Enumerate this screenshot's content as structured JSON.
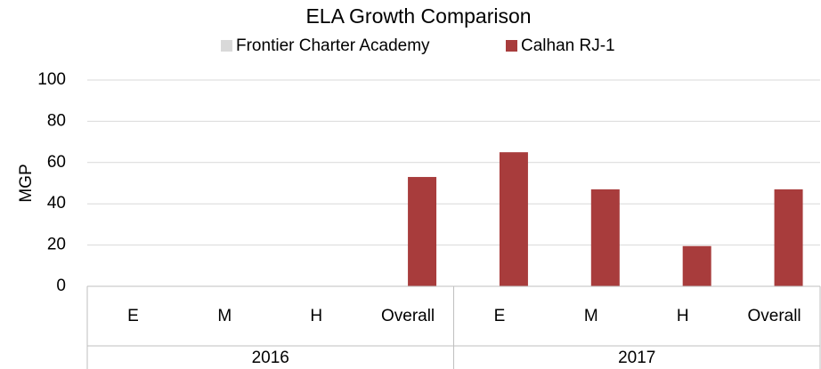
{
  "chart_data": {
    "type": "bar",
    "title": "ELA Growth Comparison",
    "y_label": "MGP",
    "categories": [
      "E",
      "M",
      "H",
      "Overall",
      "E",
      "M",
      "H",
      "Overall"
    ],
    "group_labels": [
      "2016",
      "2017"
    ],
    "series": [
      {
        "name": "Frontier Charter Academy",
        "color": "#d9d9d9",
        "values": [
          null,
          null,
          null,
          null,
          null,
          null,
          null,
          null
        ]
      },
      {
        "name": "Calhan RJ-1",
        "color": "#a83c3c",
        "values": [
          null,
          null,
          null,
          53,
          65,
          47,
          19.5,
          47
        ]
      }
    ],
    "ylim": [
      0,
      100
    ],
    "yticks": [
      0,
      20,
      40,
      60,
      80,
      100
    ],
    "grid": true
  }
}
